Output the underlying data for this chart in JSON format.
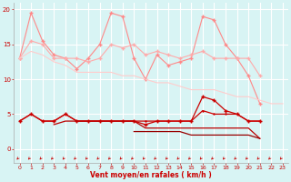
{
  "x": [
    0,
    1,
    2,
    3,
    4,
    5,
    6,
    7,
    8,
    9,
    10,
    11,
    12,
    13,
    14,
    15,
    16,
    17,
    18,
    19,
    20,
    21,
    22,
    23
  ],
  "line1": [
    13,
    19.5,
    15.5,
    13.5,
    13,
    11.5,
    13,
    15,
    19.5,
    19,
    13,
    10,
    13.5,
    12,
    12.5,
    13,
    19,
    18.5,
    15,
    13,
    10.5,
    6.5,
    null,
    null
  ],
  "line2": [
    13,
    15.5,
    15,
    13,
    13,
    13,
    12.5,
    13,
    15,
    14.5,
    15,
    13.5,
    14,
    13.5,
    13,
    13.5,
    14,
    13,
    13,
    13,
    13,
    10.5,
    null,
    null
  ],
  "line3": [
    13,
    14,
    13.5,
    12.5,
    12,
    11,
    11,
    11,
    11,
    10.5,
    10.5,
    10,
    9.5,
    9.5,
    9,
    8.5,
    8.5,
    8.5,
    8,
    7.5,
    7.5,
    7,
    6.5,
    6.5
  ],
  "line4": [
    4,
    5,
    4,
    4,
    5,
    4,
    4,
    4,
    4,
    4,
    4,
    3.5,
    4,
    4,
    4,
    4,
    7.5,
    7,
    5.5,
    5,
    4,
    4,
    null,
    null
  ],
  "line5": [
    4,
    5,
    4,
    4,
    5,
    4,
    4,
    4,
    4,
    4,
    4,
    4,
    4,
    4,
    4,
    4,
    5.5,
    5,
    5,
    5,
    4,
    4,
    null,
    null
  ],
  "line6": [
    null,
    null,
    null,
    3.5,
    4,
    4,
    4,
    4,
    4,
    4,
    4,
    3,
    3,
    3,
    3,
    3,
    3,
    3,
    3,
    3,
    3,
    1.5,
    null,
    null
  ],
  "line7": [
    null,
    null,
    null,
    null,
    null,
    null,
    null,
    null,
    null,
    null,
    2.5,
    2.5,
    2.5,
    2.5,
    2.5,
    2,
    2,
    2,
    2,
    2,
    2,
    1.5,
    null,
    null
  ],
  "background": "#d8f4f4",
  "grid_color": "#ffffff",
  "line1_color": "#ff8888",
  "line2_color": "#ffaaaa",
  "line3_color": "#ffcccc",
  "line4_color": "#cc0000",
  "line5_color": "#cc0000",
  "line6_color": "#bb0000",
  "line7_color": "#990000",
  "arrow_color": "#cc0000",
  "xlabel": "Vent moyen/en rafales ( km/h )",
  "ylabel_ticks": [
    0,
    5,
    10,
    15,
    20
  ],
  "xlim": [
    -0.5,
    23.5
  ],
  "ylim": [
    -2.0,
    21
  ]
}
